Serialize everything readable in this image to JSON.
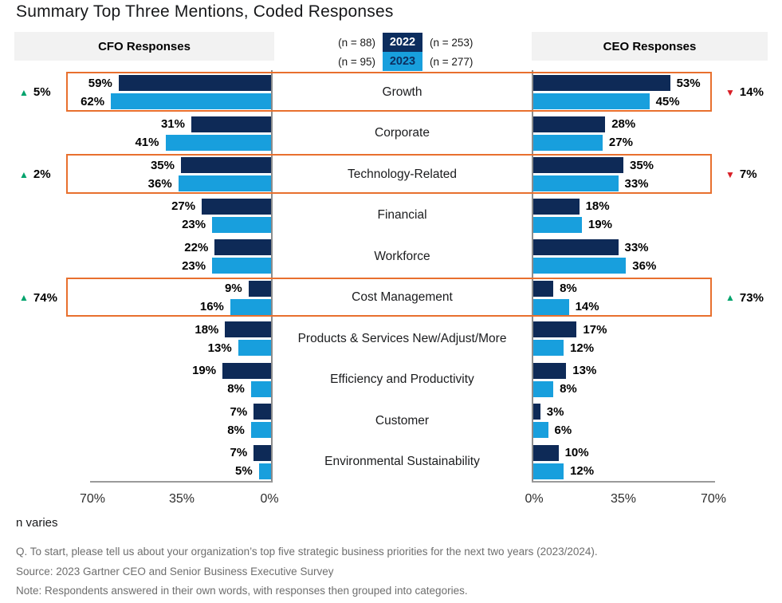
{
  "title": "Summary Top Three Mentions, Coded Responses",
  "header": {
    "left": "CFO Responses",
    "right": "CEO Responses"
  },
  "legend": {
    "rows": [
      {
        "left_n": "(n = 88)",
        "year": "2022",
        "right_n": "(n = 253)",
        "badge_color": "#0c2d5e",
        "badge_text_color": "#ffffff"
      },
      {
        "left_n": "(n = 95)",
        "year": "2023",
        "right_n": "(n = 277)",
        "badge_color": "#189fdd",
        "badge_text_color": "#0c2d5e"
      }
    ]
  },
  "chart_data": {
    "type": "bar",
    "layout": "mirrored-horizontal-tornado",
    "series_names": [
      "2022",
      "2023"
    ],
    "colors": {
      "series_2022": "#0e2a57",
      "series_2023": "#189fdd",
      "highlight_box": "#e8702e",
      "up_arrow": "#00a36c",
      "down_arrow": "#d81e26"
    },
    "axis": {
      "max_percent": 70,
      "ticks_left_chart": [
        "70%",
        "35%",
        "0%"
      ],
      "ticks_right_chart": [
        "0%",
        "35%",
        "70%"
      ]
    },
    "left_group": "CFO Responses",
    "right_group": "CEO Responses",
    "rows": [
      {
        "category": "Growth",
        "cfo": [
          59,
          62
        ],
        "ceo": [
          53,
          45
        ],
        "highlight": true,
        "cfo_change": {
          "dir": "up",
          "label": "5%"
        },
        "ceo_change": {
          "dir": "down",
          "label": "14%"
        }
      },
      {
        "category": "Corporate",
        "cfo": [
          31,
          41
        ],
        "ceo": [
          28,
          27
        ],
        "highlight": false
      },
      {
        "category": "Technology-Related",
        "cfo": [
          35,
          36
        ],
        "ceo": [
          35,
          33
        ],
        "highlight": true,
        "cfo_change": {
          "dir": "up",
          "label": "2%"
        },
        "ceo_change": {
          "dir": "down",
          "label": "7%"
        }
      },
      {
        "category": "Financial",
        "cfo": [
          27,
          23
        ],
        "ceo": [
          18,
          19
        ],
        "highlight": false
      },
      {
        "category": "Workforce",
        "cfo": [
          22,
          23
        ],
        "ceo": [
          33,
          36
        ],
        "highlight": false
      },
      {
        "category": "Cost Management",
        "cfo": [
          9,
          16
        ],
        "ceo": [
          8,
          14
        ],
        "highlight": true,
        "cfo_change": {
          "dir": "up",
          "label": "74%"
        },
        "ceo_change": {
          "dir": "up",
          "label": "73%"
        }
      },
      {
        "category": "Products & Services New/Adjust/More",
        "cfo": [
          18,
          13
        ],
        "ceo": [
          17,
          12
        ],
        "highlight": false
      },
      {
        "category": "Efficiency and Productivity",
        "cfo": [
          19,
          8
        ],
        "ceo": [
          13,
          8
        ],
        "highlight": false
      },
      {
        "category": "Customer",
        "cfo": [
          7,
          8
        ],
        "ceo": [
          3,
          6
        ],
        "highlight": false
      },
      {
        "category": "Environmental Sustainability",
        "cfo": [
          7,
          5
        ],
        "ceo": [
          10,
          12
        ],
        "highlight": false
      }
    ]
  },
  "footnotes": {
    "n_varies": "n varies",
    "question": "Q. To start, please tell us about your organization’s top five strategic business priorities for the next two years (2023/2024).",
    "source": "Source: 2023 Gartner CEO and Senior Business Executive Survey",
    "note": "Note: Respondents answered in their own words, with responses then grouped into categories."
  },
  "arrow_glyphs": {
    "up": "▲",
    "down": "▼"
  }
}
